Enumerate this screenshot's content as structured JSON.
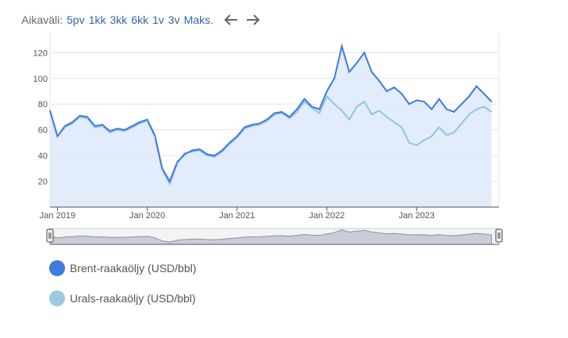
{
  "range_selector": {
    "label": "Aikaväli:",
    "options": [
      "5pv",
      "1kk",
      "3kk",
      "6kk",
      "1v",
      "3v",
      "Maks."
    ],
    "prev_icon": "arrow-left-icon",
    "next_icon": "arrow-right-icon"
  },
  "legend": [
    {
      "label": "Brent-raakaöljy (USD/bbl)",
      "color": "#3f7ae0"
    },
    {
      "label": "Urals-raakaöljy (USD/bbl)",
      "color": "#9ecae1"
    }
  ],
  "colors": {
    "brent": "#3f7ae0",
    "urals": "#93c5de",
    "area": "#dde9f9",
    "navigator_fill": "#c8cdd6",
    "navigator_line": "#8a93a3"
  },
  "chart_data": {
    "type": "line",
    "x_labels": [
      "Jan 2019",
      "Jan 2020",
      "Jan 2021",
      "Jan 2022",
      "Jan 2023"
    ],
    "x_range": [
      "2018-12",
      "2023-12"
    ],
    "ylim": [
      0,
      135
    ],
    "yticks": [
      20,
      40,
      60,
      80,
      100,
      120
    ],
    "grid": true,
    "series": [
      {
        "name": "Brent-raakaöljy (USD/bbl)",
        "x": [
          "2018-12",
          "2019-01",
          "2019-02",
          "2019-03",
          "2019-04",
          "2019-05",
          "2019-06",
          "2019-07",
          "2019-08",
          "2019-09",
          "2019-10",
          "2019-11",
          "2019-12",
          "2020-01",
          "2020-02",
          "2020-03",
          "2020-04",
          "2020-05",
          "2020-06",
          "2020-07",
          "2020-08",
          "2020-09",
          "2020-10",
          "2020-11",
          "2020-12",
          "2021-01",
          "2021-02",
          "2021-03",
          "2021-04",
          "2021-05",
          "2021-06",
          "2021-07",
          "2021-08",
          "2021-09",
          "2021-10",
          "2021-11",
          "2021-12",
          "2022-01",
          "2022-02",
          "2022-03",
          "2022-04",
          "2022-05",
          "2022-06",
          "2022-07",
          "2022-08",
          "2022-09",
          "2022-10",
          "2022-11",
          "2022-12",
          "2023-01",
          "2023-02",
          "2023-03",
          "2023-04",
          "2023-05",
          "2023-06",
          "2023-07",
          "2023-08",
          "2023-09",
          "2023-10",
          "2023-11"
        ],
        "values": [
          75,
          55,
          63,
          66,
          71,
          70,
          63,
          64,
          59,
          61,
          60,
          63,
          66,
          68,
          56,
          30,
          20,
          35,
          41,
          44,
          45,
          41,
          40,
          44,
          50,
          55,
          62,
          64,
          65,
          68,
          73,
          74,
          70,
          76,
          84,
          78,
          76,
          90,
          100,
          125,
          105,
          112,
          120,
          105,
          98,
          90,
          93,
          88,
          80,
          83,
          82,
          76,
          84,
          76,
          74,
          80,
          86,
          94,
          88,
          82
        ]
      },
      {
        "name": "Urals-raakaöljy (USD/bbl)",
        "x": [
          "2018-12",
          "2019-01",
          "2019-02",
          "2019-03",
          "2019-04",
          "2019-05",
          "2019-06",
          "2019-07",
          "2019-08",
          "2019-09",
          "2019-10",
          "2019-11",
          "2019-12",
          "2020-01",
          "2020-02",
          "2020-03",
          "2020-04",
          "2020-05",
          "2020-06",
          "2020-07",
          "2020-08",
          "2020-09",
          "2020-10",
          "2020-11",
          "2020-12",
          "2021-01",
          "2021-02",
          "2021-03",
          "2021-04",
          "2021-05",
          "2021-06",
          "2021-07",
          "2021-08",
          "2021-09",
          "2021-10",
          "2021-11",
          "2021-12",
          "2022-01",
          "2022-02",
          "2022-03",
          "2022-04",
          "2022-05",
          "2022-06",
          "2022-07",
          "2022-08",
          "2022-09",
          "2022-10",
          "2022-11",
          "2022-12",
          "2023-01",
          "2023-02",
          "2023-03",
          "2023-04",
          "2023-05",
          "2023-06",
          "2023-07",
          "2023-08",
          "2023-09",
          "2023-10",
          "2023-11"
        ],
        "values": [
          75,
          55,
          62,
          65,
          70,
          69,
          62,
          63,
          58,
          60,
          59,
          62,
          65,
          67,
          55,
          29,
          18,
          34,
          42,
          43,
          44,
          40,
          39,
          43,
          49,
          54,
          61,
          63,
          64,
          67,
          72,
          73,
          69,
          74,
          82,
          77,
          73,
          86,
          80,
          75,
          68,
          78,
          82,
          72,
          75,
          70,
          66,
          62,
          50,
          48,
          52,
          55,
          62,
          56,
          58,
          65,
          72,
          76,
          78,
          74
        ]
      }
    ]
  }
}
